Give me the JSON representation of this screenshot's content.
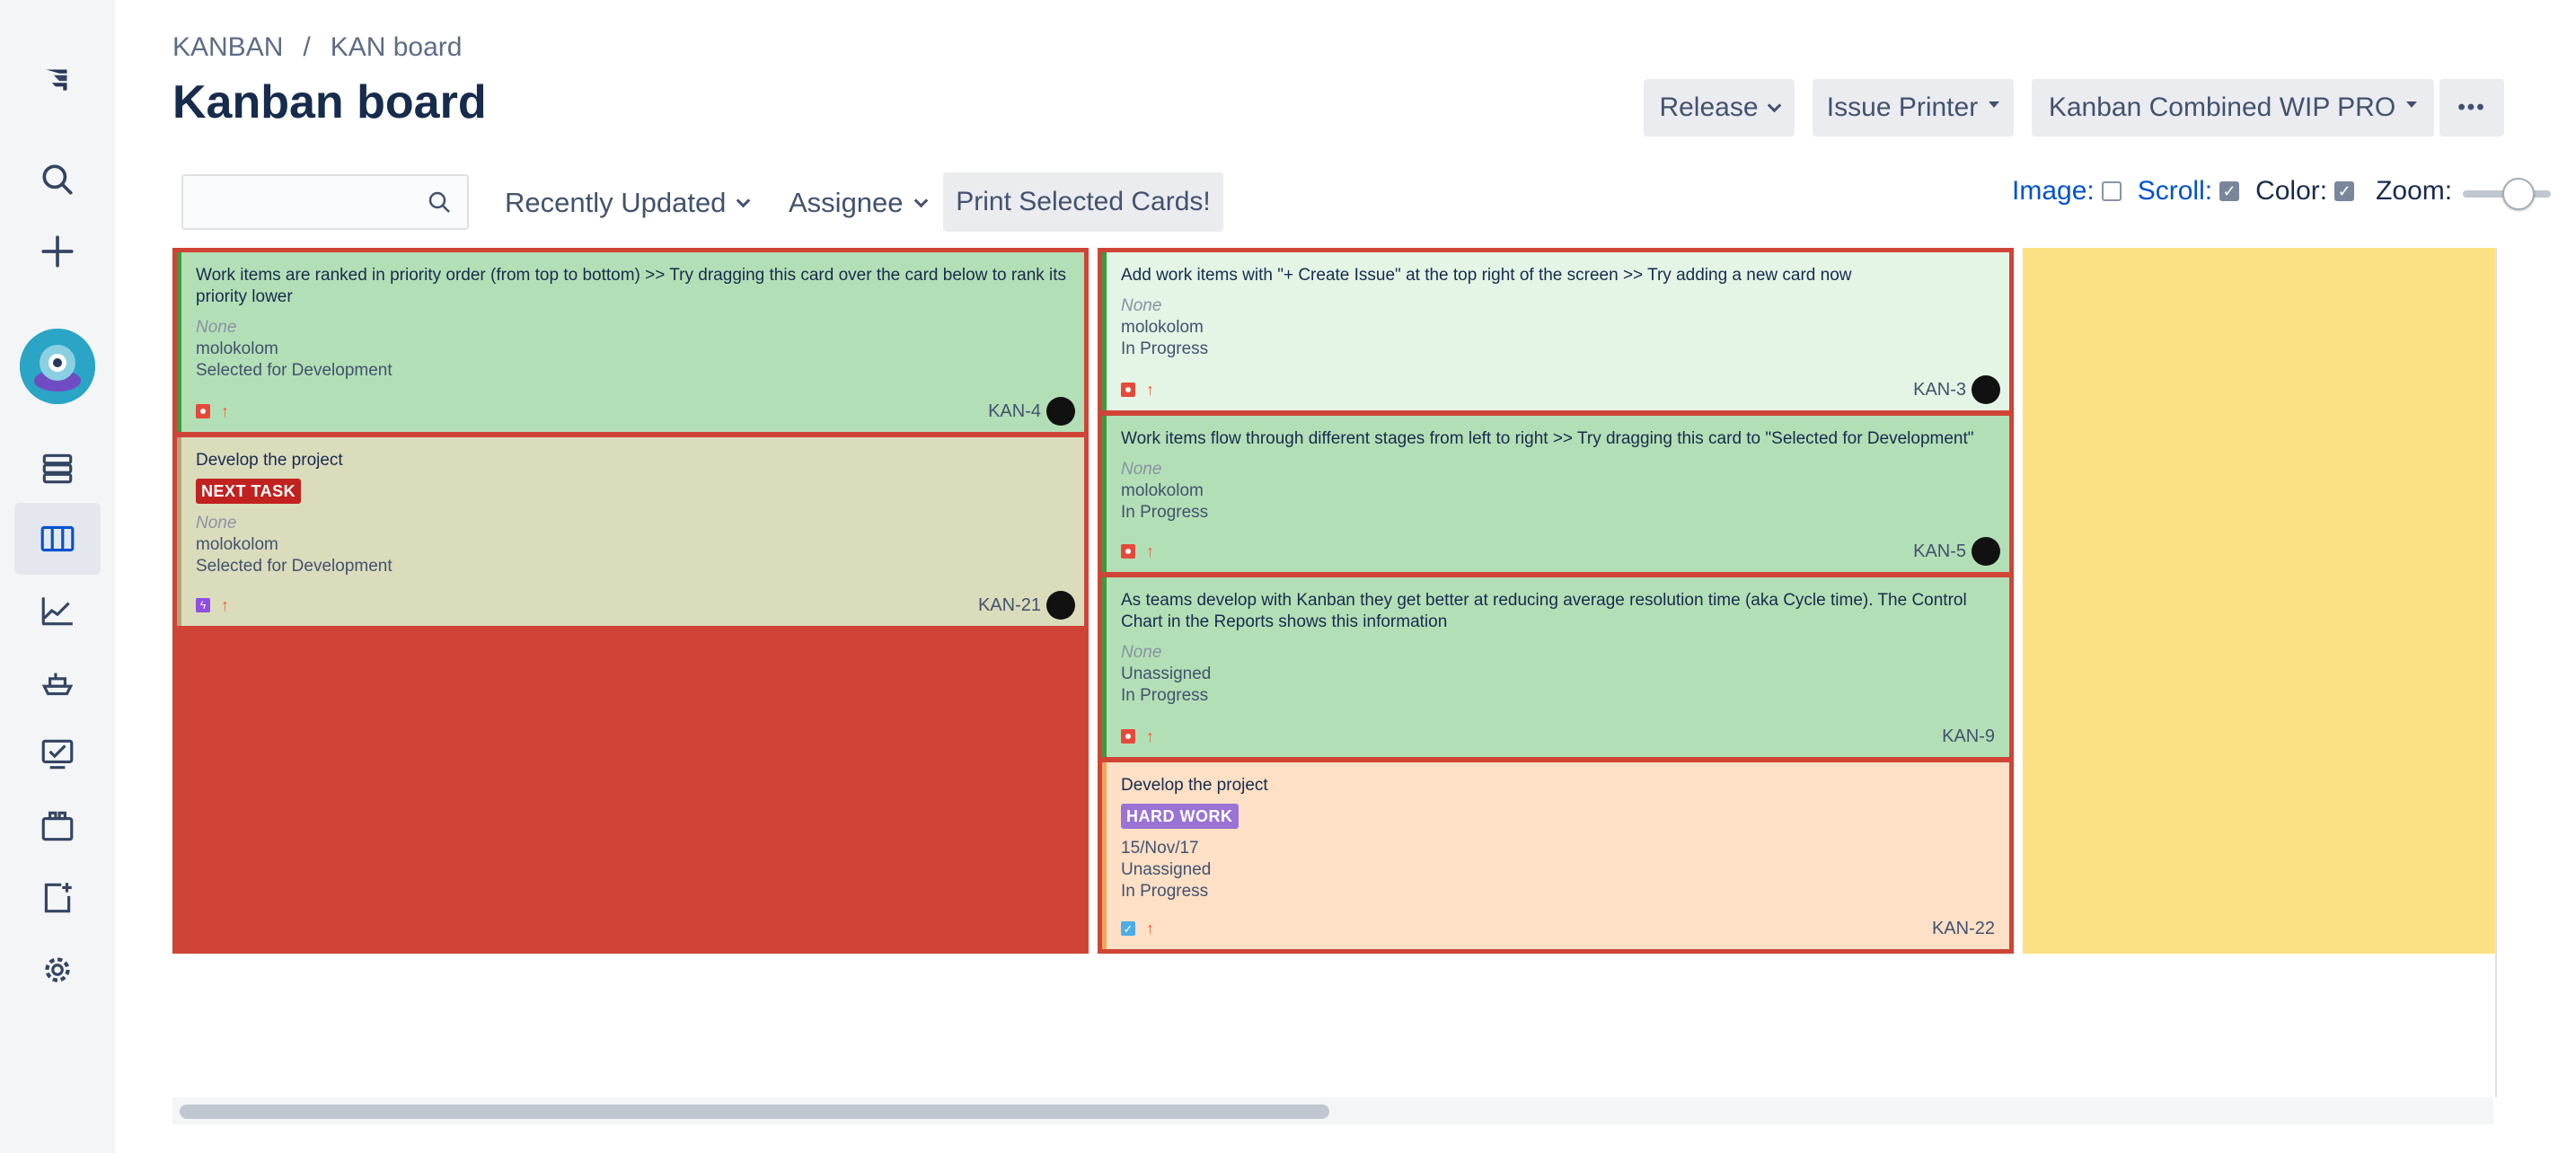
{
  "sidebar": {
    "icons": [
      "jira-logo-icon",
      "search-icon",
      "plus-icon",
      "avatar",
      "backlog-icon",
      "board-icon",
      "reports-icon",
      "releases-icon",
      "issues-icon",
      "components-icon",
      "add-page-icon",
      "settings-icon"
    ]
  },
  "breadcrumb": {
    "project": "KANBAN",
    "separator": "/",
    "board": "KAN board"
  },
  "page": {
    "title": "Kanban board"
  },
  "header_buttons": {
    "release": "Release",
    "issue_printer": "Issue Printer",
    "wip": "Kanban Combined WIP PRO",
    "more": "•••"
  },
  "toolbar": {
    "search_placeholder": "",
    "recently_updated": "Recently Updated",
    "assignee": "Assignee",
    "print": "Print Selected Cards!"
  },
  "options": {
    "image_label": "Image:",
    "image_checked": false,
    "scroll_label": "Scroll:",
    "scroll_checked": true,
    "color_label": "Color:",
    "color_checked": true,
    "zoom_label": "Zoom:",
    "zoom_level": 0.6
  },
  "colors": {
    "wip_exceeded": "#cf4436",
    "done_column": "#fbe183",
    "accent": "#0052cc"
  },
  "columns": [
    {
      "cards": [
        {
          "summary": "Work items are ranked in priority order (from top to bottom) >> Try dragging this card over the card below to rank its priority lower",
          "field1": "None",
          "field2": "molokolom",
          "field3": "Selected for Development",
          "key": "KAN-4",
          "type": "bug",
          "priority": "high"
        },
        {
          "summary": "Develop the project",
          "label": "NEXT TASK",
          "field1": "None",
          "field2": "molokolom",
          "field3": "Selected for Development",
          "key": "KAN-21",
          "type": "epic",
          "priority": "high"
        }
      ]
    },
    {
      "cards": [
        {
          "summary": "Add work items with \"+ Create Issue\" at the top right of the screen >> Try adding a new card now",
          "field1": "None",
          "field2": "molokolom",
          "field3": "In Progress",
          "key": "KAN-3",
          "type": "bug",
          "priority": "high"
        },
        {
          "summary": "Work items flow through different stages from left to right >> Try dragging this card to \"Selected for Development\"",
          "field1": "None",
          "field2": "molokolom",
          "field3": "In Progress",
          "key": "KAN-5",
          "type": "bug",
          "priority": "high"
        },
        {
          "summary": "As teams develop with Kanban they get better at reducing average resolution time (aka Cycle time). The Control Chart in the Reports shows this information",
          "field1": "None",
          "field2": "Unassigned",
          "field3": "In Progress",
          "key": "KAN-9",
          "type": "bug",
          "priority": "high"
        },
        {
          "summary": "Develop the project",
          "label": "HARD WORK",
          "field1": "15/Nov/17",
          "field2": "Unassigned",
          "field3": "In Progress",
          "key": "KAN-22",
          "type": "task",
          "priority": "high"
        }
      ]
    }
  ]
}
